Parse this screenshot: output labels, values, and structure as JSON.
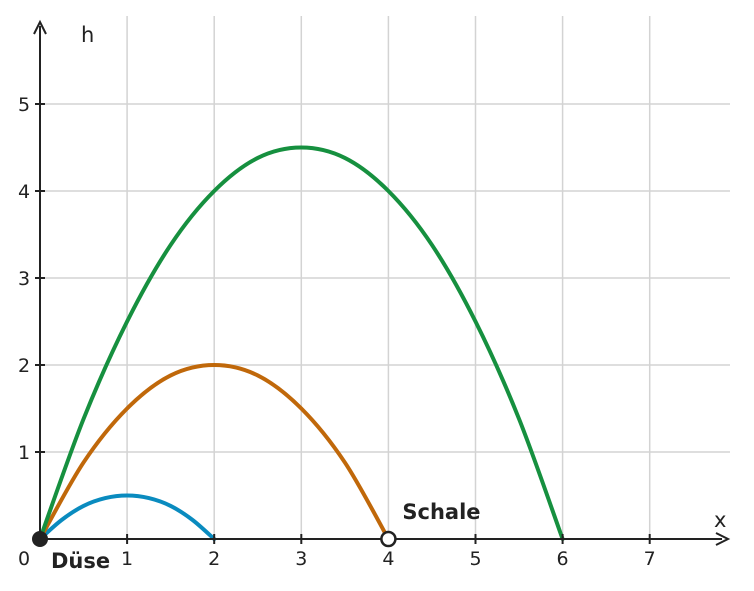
{
  "chart_data": {
    "type": "line",
    "xlabel": "x",
    "ylabel": "h",
    "xlim": [
      0,
      7.9
    ],
    "ylim": [
      0,
      5.9
    ],
    "x_ticks": [
      "1",
      "2",
      "3",
      "4",
      "5",
      "6",
      "7"
    ],
    "y_ticks": [
      "1",
      "2",
      "3",
      "4",
      "5"
    ],
    "origin_label": "0",
    "grid": true,
    "series": [
      {
        "color": "#0a8bbf",
        "x": [
          0,
          0.25,
          0.5,
          0.75,
          1,
          1.25,
          1.5,
          1.75,
          2
        ],
        "y": [
          0,
          0.22,
          0.38,
          0.47,
          0.5,
          0.47,
          0.38,
          0.22,
          0
        ]
      },
      {
        "color": "#c0680a",
        "x": [
          0,
          0.5,
          1,
          1.5,
          2,
          2.5,
          3,
          3.5,
          4
        ],
        "y": [
          0,
          0.88,
          1.5,
          1.88,
          2,
          1.88,
          1.5,
          0.88,
          0
        ]
      },
      {
        "color": "#16903f",
        "x": [
          0,
          0.5,
          1,
          1.5,
          2,
          2.5,
          3,
          3.5,
          4,
          4.5,
          5,
          5.5,
          6
        ],
        "y": [
          0,
          1.38,
          2.5,
          3.38,
          4,
          4.38,
          4.5,
          4.38,
          4,
          3.38,
          2.5,
          1.38,
          0
        ]
      }
    ],
    "points": [
      {
        "label": "Düse",
        "x": 0,
        "y": 0,
        "style": "filled"
      },
      {
        "label": "Schale",
        "x": 4,
        "y": 0,
        "style": "hollow"
      }
    ]
  }
}
